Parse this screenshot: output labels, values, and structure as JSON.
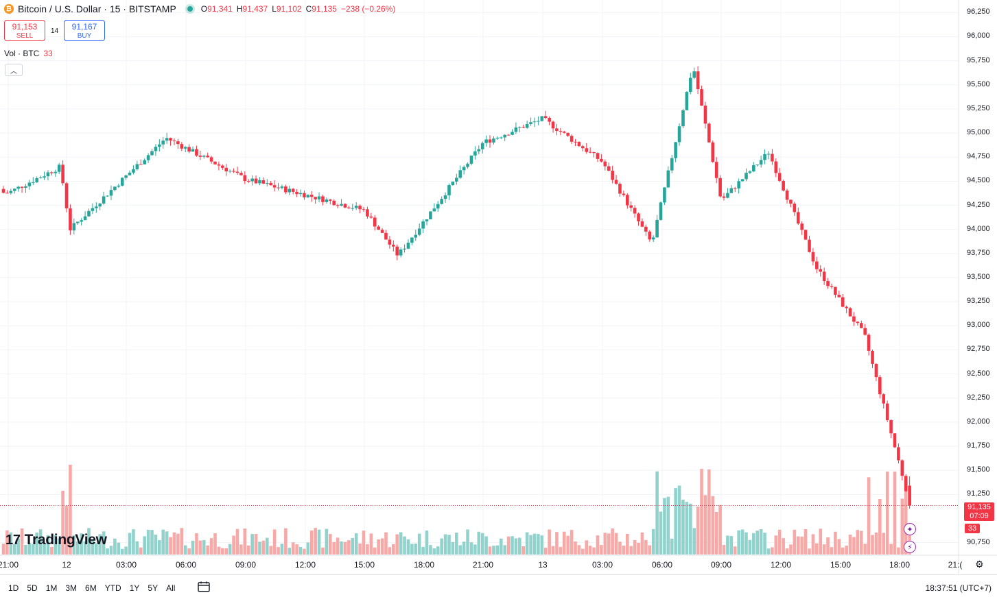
{
  "header": {
    "coin_glyph": "₿",
    "symbol": "Bitcoin / U.S. Dollar · 15 · BITSTAMP",
    "ohlc": {
      "o_label": "O",
      "o": "91,341",
      "h_label": "H",
      "h": "91,437",
      "l_label": "L",
      "l": "91,102",
      "c_label": "C",
      "c": "91,135",
      "change": "−238 (−0.26%)"
    }
  },
  "trade": {
    "sell_price": "91,153",
    "sell_label": "SELL",
    "spread": "14",
    "buy_price": "91,167",
    "buy_label": "BUY"
  },
  "volume_legend": {
    "label": "Vol · BTC",
    "value": "33"
  },
  "price_axis_ticks": [
    "96,250",
    "96,000",
    "95,750",
    "95,500",
    "95,250",
    "95,000",
    "94,750",
    "94,500",
    "94,250",
    "94,000",
    "93,750",
    "93,500",
    "93,250",
    "93,000",
    "92,750",
    "92,500",
    "92,250",
    "92,000",
    "91,750",
    "91,500",
    "91,250",
    "90,750"
  ],
  "time_axis_ticks": [
    "21:00",
    "12",
    "03:00",
    "06:00",
    "09:00",
    "12:00",
    "15:00",
    "18:00",
    "21:00",
    "13",
    "03:00",
    "06:00",
    "09:00",
    "12:00",
    "15:00",
    "18:00",
    "21:("
  ],
  "last_price": {
    "price": "91,135",
    "countdown": "07:09"
  },
  "volume_tag": "33",
  "brand": {
    "mark": "17",
    "name": "TradingView"
  },
  "ranges": [
    "1D",
    "5D",
    "1M",
    "3M",
    "6M",
    "YTD",
    "1Y",
    "5Y",
    "All"
  ],
  "clock": "18:37:51 (UTC+7)",
  "colors": {
    "up": "#26a69a",
    "down": "#f23645",
    "up_vol": "#92d2cc",
    "down_vol": "#f7a9a7",
    "grid": "#f0f3fa"
  },
  "chart_data": {
    "type": "candlestick",
    "symbol": "BTCUSD",
    "interval": "15",
    "ylim": [
      90700,
      96300
    ],
    "price_ticks": [
      96250,
      96000,
      95750,
      95500,
      95250,
      95000,
      94750,
      94500,
      94250,
      94000,
      93750,
      93500,
      93250,
      93000,
      92750,
      92500,
      92250,
      92000,
      91750,
      91500,
      91250,
      90750
    ],
    "key_closes": [
      {
        "time": "21:00",
        "close": 94380
      },
      {
        "time": "12 00:00",
        "close": 94650
      },
      {
        "time": "12 00:45",
        "close": 94000
      },
      {
        "time": "12 04:30",
        "close": 94950
      },
      {
        "time": "12 09:00",
        "close": 94520
      },
      {
        "time": "12 15:00",
        "close": 94200
      },
      {
        "time": "12 17:00",
        "close": 93730
      },
      {
        "time": "12 21:00",
        "close": 94900
      },
      {
        "time": "13 00:00",
        "close": 95150
      },
      {
        "time": "13 03:00",
        "close": 94700
      },
      {
        "time": "13 05:30",
        "close": 93850
      },
      {
        "time": "13 07:30",
        "close": 95700
      },
      {
        "time": "13 09:00",
        "close": 94300
      },
      {
        "time": "13 11:30",
        "close": 94800
      },
      {
        "time": "13 14:30",
        "close": 93600
      },
      {
        "time": "13 16:30",
        "close": 92900
      },
      {
        "time": "13 18:15",
        "close": 91135
      }
    ],
    "last_price": 91135,
    "volume_last": 33
  }
}
